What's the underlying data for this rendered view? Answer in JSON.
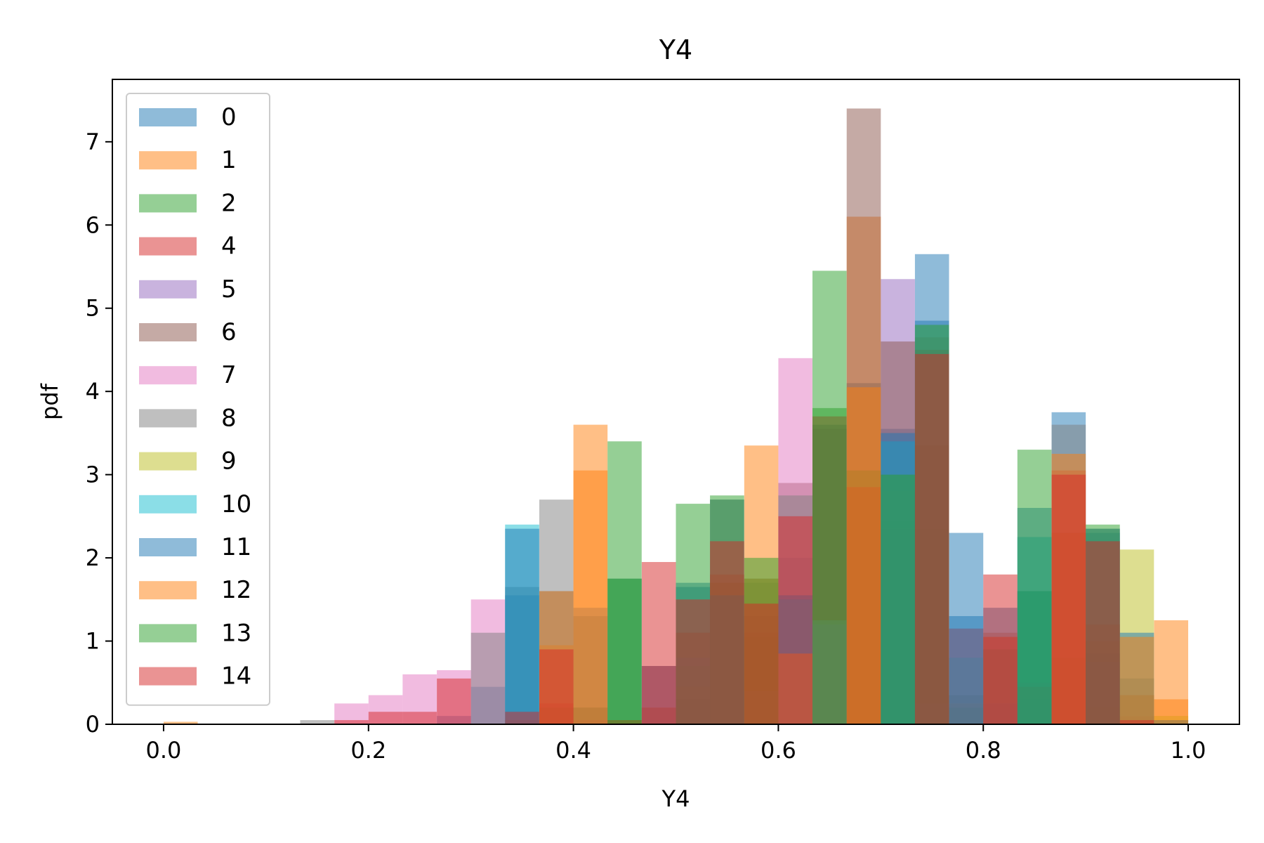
{
  "chart_data": {
    "type": "bar",
    "subtype": "overlapping-histogram",
    "title": "Y4",
    "xlabel": "Y4",
    "ylabel": "pdf",
    "xlim": [
      -0.05,
      1.05
    ],
    "ylim": [
      0,
      7.75
    ],
    "xticks": [
      0.0,
      0.2,
      0.4,
      0.6,
      0.8,
      1.0
    ],
    "xtick_labels": [
      "0.0",
      "0.2",
      "0.4",
      "0.6",
      "0.8",
      "1.0"
    ],
    "yticks": [
      0,
      1,
      2,
      3,
      4,
      5,
      6,
      7
    ],
    "ytick_labels": [
      "0",
      "1",
      "2",
      "3",
      "4",
      "5",
      "6",
      "7"
    ],
    "grid": false,
    "legend_position": "upper-left",
    "bin_width": 0.0333,
    "bin_starts": [
      0.0,
      0.0333,
      0.0667,
      0.1,
      0.1333,
      0.1667,
      0.2,
      0.2333,
      0.2667,
      0.3,
      0.3333,
      0.3667,
      0.4,
      0.4333,
      0.4667,
      0.5,
      0.5333,
      0.5667,
      0.6,
      0.6333,
      0.6667,
      0.7,
      0.7333,
      0.7667,
      0.8,
      0.8333,
      0.8667,
      0.9,
      0.9333,
      0.9667
    ],
    "series": [
      {
        "name": "0",
        "color": "#1f77b4",
        "values": [
          0,
          0,
          0,
          0,
          0,
          0,
          0,
          0,
          0.1,
          0.45,
          1.55,
          1.6,
          1.3,
          1.75,
          0.7,
          1.7,
          2.7,
          1.7,
          2.0,
          3.6,
          4.1,
          3.55,
          5.65,
          2.3,
          1.4,
          1.6,
          3.75,
          2.3,
          0.55,
          0
        ]
      },
      {
        "name": "1",
        "color": "#ff7f0e",
        "values": [
          0.03,
          0,
          0,
          0,
          0,
          0,
          0,
          0,
          0,
          0,
          0.05,
          0.95,
          3.6,
          0.05,
          0,
          0.45,
          1.7,
          3.35,
          1.45,
          0.05,
          6.1,
          2.8,
          3.35,
          0.25,
          1.05,
          0.45,
          2.3,
          1.0,
          0.35,
          1.25
        ]
      },
      {
        "name": "2",
        "color": "#2ca02c",
        "values": [
          0,
          0,
          0,
          0,
          0,
          0,
          0,
          0,
          0,
          0,
          0,
          0.2,
          0.2,
          1.75,
          0,
          0,
          0,
          1.05,
          0.8,
          3.8,
          3.05,
          2.45,
          2.35,
          0.2,
          0.9,
          1.6,
          0.8,
          0.2,
          0.05,
          0
        ]
      },
      {
        "name": "4",
        "color": "#d62728",
        "values": [
          0,
          0,
          0,
          0,
          0,
          0,
          0,
          0,
          0,
          0,
          0.05,
          0.25,
          0.05,
          0.05,
          0.2,
          1.1,
          1.8,
          1.1,
          0.3,
          3.7,
          2.85,
          2.35,
          4.5,
          1.15,
          1.05,
          0.45,
          3.05,
          1.2,
          0.1,
          0
        ]
      },
      {
        "name": "5",
        "color": "#9467bd",
        "values": [
          0,
          0,
          0,
          0,
          0,
          0,
          0,
          0,
          0,
          0,
          0,
          0,
          0,
          0,
          0.7,
          0.8,
          0,
          0.4,
          0,
          1.2,
          0,
          5.35,
          0.25,
          0,
          0,
          0,
          0,
          0.75,
          0,
          0
        ]
      },
      {
        "name": "6",
        "color": "#8c564b",
        "values": [
          0,
          0,
          0,
          0,
          0,
          0,
          0,
          0,
          0,
          0,
          0,
          0,
          0.2,
          0,
          0.2,
          0.3,
          1.7,
          1.3,
          2.9,
          3.55,
          7.4,
          4.6,
          3.35,
          0.35,
          0.25,
          0.3,
          2.3,
          0.85,
          0.35,
          0.05
        ]
      },
      {
        "name": "7",
        "color": "#e377c2",
        "values": [
          0,
          0,
          0,
          0,
          0,
          0.25,
          0.35,
          0.6,
          0.65,
          1.5,
          0,
          0,
          0,
          0,
          0,
          0,
          0,
          0,
          4.4,
          0,
          0,
          0,
          0,
          0,
          0,
          0,
          0,
          0,
          0,
          0
        ]
      },
      {
        "name": "8",
        "color": "#7f7f7f",
        "values": [
          0,
          0,
          0,
          0,
          0.05,
          0,
          0,
          0,
          0,
          1.1,
          1.65,
          2.7,
          1.4,
          0,
          0.7,
          0.7,
          2.7,
          1.75,
          2.75,
          1.25,
          0,
          3.0,
          4.65,
          0.8,
          1.1,
          0.5,
          3.6,
          2.35,
          0,
          0
        ]
      },
      {
        "name": "9",
        "color": "#bcbd22",
        "values": [
          0,
          0,
          0,
          0,
          0,
          0,
          0,
          0,
          0,
          0,
          0,
          0,
          0,
          0,
          0,
          0,
          0,
          0,
          0,
          0,
          0,
          0,
          0,
          0,
          0,
          0,
          0,
          0,
          2.1,
          0.1
        ]
      },
      {
        "name": "10",
        "color": "#17becf",
        "values": [
          0,
          0,
          0,
          0,
          0,
          0,
          0,
          0,
          0,
          0,
          2.4,
          0,
          0,
          0,
          0,
          0,
          0,
          0,
          1.5,
          0,
          0,
          3.4,
          0,
          0,
          0,
          2.25,
          0,
          0,
          0,
          0
        ]
      },
      {
        "name": "11",
        "color": "#1f77b4",
        "values": [
          0,
          0,
          0,
          0,
          0,
          0,
          0,
          0,
          0,
          0,
          2.35,
          0,
          0,
          0,
          0,
          1.65,
          1.55,
          0,
          1.55,
          0,
          0,
          3.5,
          4.85,
          1.3,
          0,
          2.6,
          0,
          2.35,
          1.1,
          0.05
        ]
      },
      {
        "name": "12",
        "color": "#ff7f0e",
        "values": [
          0,
          0,
          0,
          0,
          0,
          0,
          0,
          0,
          0,
          0,
          0,
          1.6,
          3.05,
          0,
          0,
          0,
          0,
          1.75,
          0.85,
          0,
          4.05,
          0,
          0,
          0,
          0,
          0,
          3.25,
          0,
          1.05,
          0.3
        ]
      },
      {
        "name": "13",
        "color": "#2ca02c",
        "values": [
          0,
          0,
          0,
          0,
          0,
          0,
          0,
          0,
          0,
          0,
          0,
          0,
          0,
          3.4,
          0,
          2.65,
          2.75,
          2.0,
          0,
          5.45,
          0,
          3.0,
          4.8,
          0,
          0,
          3.3,
          0,
          2.4,
          0,
          0
        ]
      },
      {
        "name": "14",
        "color": "#d62728",
        "values": [
          0,
          0,
          0,
          0,
          0,
          0.05,
          0.15,
          0.15,
          0.55,
          0,
          0.15,
          0.9,
          0,
          0,
          1.95,
          1.5,
          2.2,
          1.45,
          2.5,
          0,
          0,
          0,
          4.45,
          0,
          1.8,
          0,
          3.0,
          2.2,
          0.05,
          0
        ]
      }
    ]
  }
}
